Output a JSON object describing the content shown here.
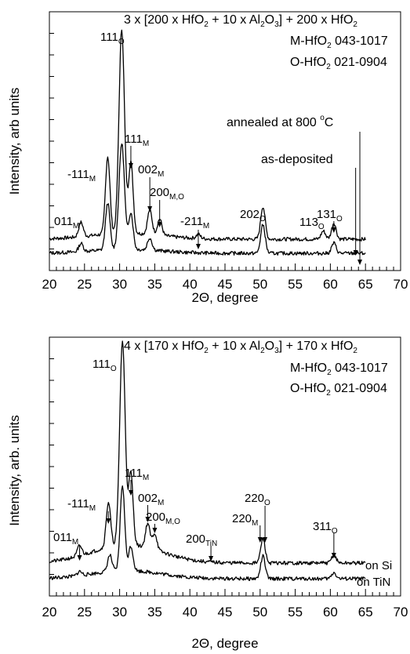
{
  "chart_data": [
    {
      "type": "line",
      "xlabel": "2Θ, degree",
      "ylabel": "Intensity, arb units",
      "xlim": [
        20,
        70
      ],
      "x_ticks": [
        20,
        25,
        30,
        35,
        40,
        45,
        50,
        55,
        60,
        65,
        70
      ],
      "grid": false,
      "legend": "none",
      "annotations_text": {
        "sample": "3 x [200 x HfO",
        "ref1": "M-HfO",
        "ref2": "O-HfO",
        "ref1_code": " 043-1017",
        "ref2_code": " 021-0904",
        "annealed": "annealed at 800 ",
        "asdep": "as-deposited"
      },
      "peaks": [
        {
          "label": "011",
          "sub": "M",
          "x": 24.5
        },
        {
          "label": "-111",
          "sub": "M",
          "x": 28.3
        },
        {
          "label": "111",
          "sub": "O",
          "x": 30.3
        },
        {
          "label": "111",
          "sub": "M",
          "x": 31.6
        },
        {
          "label": "002",
          "sub": "M",
          "x": 34.3
        },
        {
          "label": "200",
          "sub": "M,O",
          "x": 35.7
        },
        {
          "label": "-211",
          "sub": "M",
          "x": 41.2
        },
        {
          "label": "202",
          "sub": "O",
          "x": 50.4
        },
        {
          "label": "113",
          "sub": "O",
          "x": 59.0
        },
        {
          "label": "131",
          "sub": "O",
          "x": 60.5
        }
      ],
      "series": [
        {
          "name": "annealed at 800 °C",
          "x_range": [
            20,
            65
          ],
          "peaks": [
            [
              24.5,
              0.07
            ],
            [
              28.3,
              0.38
            ],
            [
              30.3,
              1.0
            ],
            [
              31.6,
              0.35
            ],
            [
              34.3,
              0.12
            ],
            [
              35.7,
              0.08
            ],
            [
              41.2,
              0.02
            ],
            [
              50.4,
              0.16
            ],
            [
              59.0,
              0.04
            ],
            [
              60.5,
              0.08
            ]
          ]
        },
        {
          "name": "as-deposited",
          "x_range": [
            20,
            65
          ],
          "peaks": [
            [
              24.5,
              0.04
            ],
            [
              28.3,
              0.23
            ],
            [
              30.3,
              0.52
            ],
            [
              31.6,
              0.18
            ],
            [
              34.3,
              0.06
            ],
            [
              50.4,
              0.14
            ],
            [
              60.5,
              0.05
            ]
          ]
        }
      ]
    },
    {
      "type": "line",
      "xlabel": "2Θ, degree",
      "ylabel": "Intensity, arb. units",
      "xlim": [
        20,
        70
      ],
      "x_ticks": [
        20,
        25,
        30,
        35,
        40,
        45,
        50,
        55,
        60,
        65,
        70
      ],
      "grid": false,
      "legend": "none",
      "annotations_text": {
        "sample": "4 x [170 x HfO",
        "ref1": "M-HfO",
        "ref2": "O-HfO",
        "ref1_code": " 043-1017",
        "ref2_code": " 021-0904",
        "on_si": "on Si",
        "on_tin": "on TiN"
      },
      "peaks": [
        {
          "label": "011",
          "sub": "M",
          "x": 24.3
        },
        {
          "label": "-111",
          "sub": "M",
          "x": 28.4
        },
        {
          "label": "111",
          "sub": "O",
          "x": 30.4
        },
        {
          "label": "111",
          "sub": "M",
          "x": 31.6
        },
        {
          "label": "002",
          "sub": "M",
          "x": 34.0
        },
        {
          "label": "200",
          "sub": "M,O",
          "x": 35.0
        },
        {
          "label": "200",
          "sub": "TiN",
          "x": 43.0
        },
        {
          "label": "220",
          "sub": "M",
          "x": 50.0
        },
        {
          "label": "220",
          "sub": "O",
          "x": 50.7
        },
        {
          "label": "311",
          "sub": "O",
          "x": 60.5
        }
      ],
      "series": [
        {
          "name": "on Si",
          "x_range": [
            20,
            65
          ],
          "peaks": [
            [
              24.3,
              0.05
            ],
            [
              28.4,
              0.22
            ],
            [
              30.4,
              1.0
            ],
            [
              31.6,
              0.35
            ],
            [
              34.0,
              0.12
            ],
            [
              35.0,
              0.08
            ],
            [
              50.4,
              0.12
            ],
            [
              60.5,
              0.04
            ]
          ]
        },
        {
          "name": "on TiN",
          "x_range": [
            20,
            65
          ],
          "peaks": [
            [
              24.3,
              0.02
            ],
            [
              28.6,
              0.08
            ],
            [
              30.4,
              0.42
            ],
            [
              31.6,
              0.12
            ],
            [
              50.4,
              0.11
            ],
            [
              60.5,
              0.03
            ]
          ]
        }
      ]
    }
  ]
}
